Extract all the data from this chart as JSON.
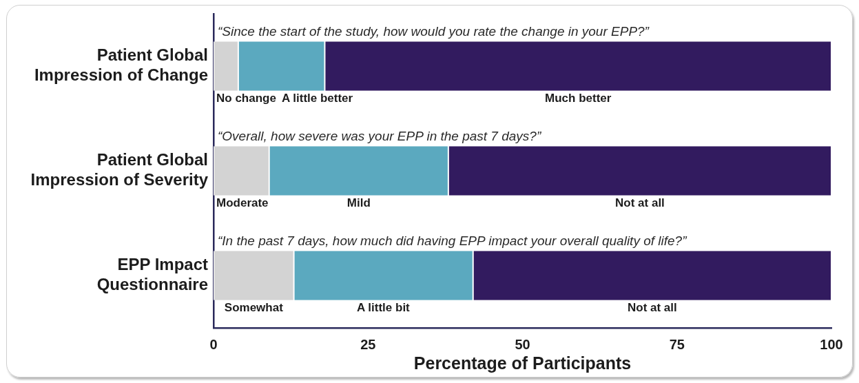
{
  "chart_data": {
    "type": "bar",
    "orientation": "horizontal",
    "stacked": true,
    "categories": [
      "Patient Global Impression of Change",
      "Patient Global Impression of Severity",
      "EPP Impact Questionnaire"
    ],
    "series": [
      {
        "color": "#d3d3d3",
        "values": [
          4,
          9,
          13
        ],
        "value_labels": [
          "No change",
          "Moderate",
          "Somewhat"
        ]
      },
      {
        "color": "#5ba9bf",
        "values": [
          14,
          29,
          29
        ],
        "value_labels": [
          "A little better",
          "Mild",
          "A little bit"
        ]
      },
      {
        "color": "#321b5f",
        "values": [
          82,
          62,
          58
        ],
        "value_labels": [
          "Much better",
          "Not at all",
          "Not at all"
        ]
      }
    ],
    "xlim": [
      0,
      100
    ],
    "xticks": [
      0,
      25,
      50,
      75,
      100
    ],
    "xlabel": "Percentage of Participants",
    "grid": false,
    "legend": false,
    "annotations": [
      "“Since the start of the study, how would you rate the change in your EPP?”",
      "“Overall, how severe was your EPP in the past 7 days?”",
      "“In the past 7 days, how much did having EPP impact your overall quality of life?”"
    ]
  }
}
